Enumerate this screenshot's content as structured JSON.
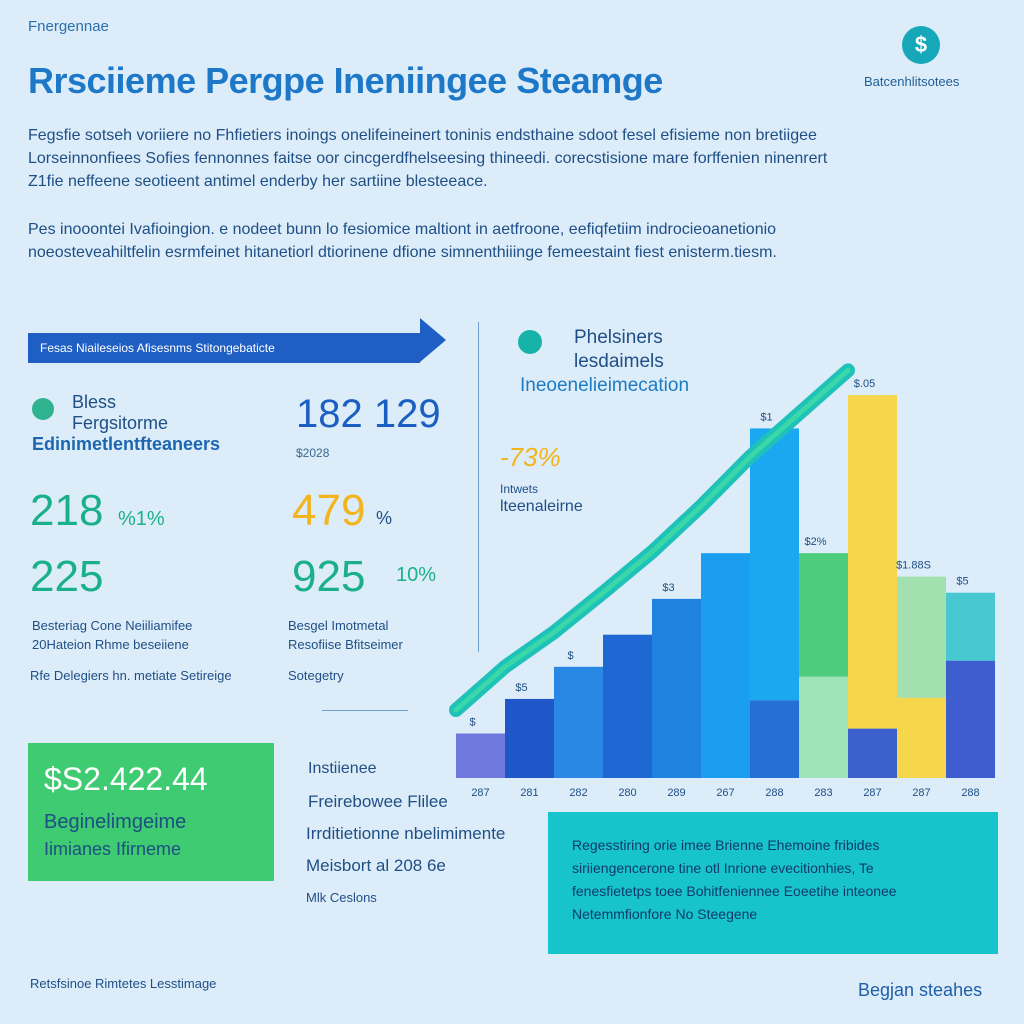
{
  "overline": "Fnergennae",
  "brand_top": "Batcenhlitsotees",
  "logo_glyph": "$",
  "title": "Rrsciieme Pergpe Ineniingee Steamge",
  "intro_lines": [
    "Fegsfie sotseh voriiere no Fhfietiers inoings onelifeineinert toninis endsthaine sdoot fesel efisieme non bretiigee",
    "Lorseinnonfiees Sofies fennonnes faitse oor cincgerdfhelseesing thineedi. corecstisione mare forffenien ninenrert",
    "Z1fie neffeene seotieent antimel enderby her sartiine blesteeace."
  ],
  "intro2_lines": [
    "Pes inooontei Ivafioingion. e nodeet bunn lo fesiomice maltiont in aetfroone, eefiqfetiim indrocieoanetionio",
    "noeosteveahiltfelin esrmfeinet hitanetiorl dtiorinene dfione simnenthiiinge femeestaint fiest enisterm.tiesm."
  ],
  "ribbon": "Fesas Niaileseios Afisesnms Stitongebaticte",
  "bless_lines": [
    "Bless",
    "Fergsitorme",
    "Edinimetlentfteaneers"
  ],
  "big_number": "182 129",
  "big_sub": "$2028",
  "stats": {
    "s1": "218",
    "s1_unit": "%1%",
    "s2": "479",
    "s2_unit": "%",
    "s3": "225",
    "s4": "925",
    "s4_unit": "10%"
  },
  "captions": {
    "c1": [
      "Besteriag Cone Neiiliamifee",
      "20Hateion Rhme beseiiene"
    ],
    "c2": [
      "Besgel Imotmetal",
      "Resofiise Bfitseimer"
    ],
    "c3": "Rfe Delegiers hn. metiate Setireige",
    "c4": "Sotegetry"
  },
  "green_box": {
    "value": "$S2.422.44",
    "line1": "Beginelimgeime",
    "line2": "Iimianes Ifirneme"
  },
  "insights": {
    "head": "Instiienee",
    "l1": "Freirebowee Flilee",
    "l2": "Irrditietionne nbelimimente",
    "l3": "Meisbort al 208 6e",
    "l4": "Mlk Ceslons"
  },
  "teal_box": {
    "lines": [
      "Regesstiring orie imee Brienne Ehemoine fribides",
      "siriiengencerone tine otl Inrione evecitionhies, Te",
      "fenesfietetps toee Bohitfeniennee Eoeetihe inteonee"
    ],
    "last": "Netemmfionfore No Steegene"
  },
  "chart_head": [
    "Phelsiners",
    "lesdaimels",
    "Ineoenelieimecation"
  ],
  "pct_yellow": "-73%",
  "annotation": [
    "Intwets",
    "lteenaleirne"
  ],
  "footer_left": "Retsfsinoe Rimtetes Lesstimage",
  "footer_right": "Begjan steahes",
  "colors": {
    "accent_blue": "#1f5fc4",
    "teal": "#17c4cc",
    "green": "#3fcb72",
    "yellow": "#f2d248"
  },
  "chart_data": {
    "type": "bar",
    "categories": [
      "287",
      "281",
      "282",
      "280",
      "289",
      "267",
      "288",
      "283",
      "287",
      "287",
      "288"
    ],
    "stacks": [
      [
        {
          "v": 36,
          "c": "#6f78dd"
        }
      ],
      [
        {
          "v": 64,
          "c": "#1f56c8"
        }
      ],
      [
        {
          "v": 90,
          "c": "#2888e4"
        }
      ],
      [
        {
          "v": 116,
          "c": "#1f68d4"
        }
      ],
      [
        {
          "v": 145,
          "c": "#1f82e0"
        }
      ],
      [
        {
          "v": 182,
          "c": "#1c9ef0"
        }
      ],
      [
        {
          "v": 63,
          "c": "#2470d4"
        },
        {
          "v": 220,
          "c": "#1aa8f0"
        }
      ],
      [
        {
          "v": 82,
          "c": "#9ee2b8"
        },
        {
          "v": 100,
          "c": "#4ccc7c"
        }
      ],
      [
        {
          "v": 40,
          "c": "#3c60cc"
        },
        {
          "v": 270,
          "c": "#f6d64a"
        }
      ],
      [
        {
          "v": 65,
          "c": "#f6d64a"
        },
        {
          "v": 98,
          "c": "#a2e0b0"
        }
      ],
      [
        {
          "v": 95,
          "c": "#3e5ed0"
        },
        {
          "v": 55,
          "c": "#48c8d0"
        }
      ]
    ],
    "labels": [
      "$",
      "$5",
      "$",
      "",
      "$3",
      "",
      "$1",
      "$2%",
      "$.05",
      "$1.88S",
      "$5"
    ],
    "trend": [
      55,
      90,
      118,
      150,
      183,
      220,
      260,
      295,
      330
    ],
    "ylim": [
      0,
      340
    ]
  }
}
